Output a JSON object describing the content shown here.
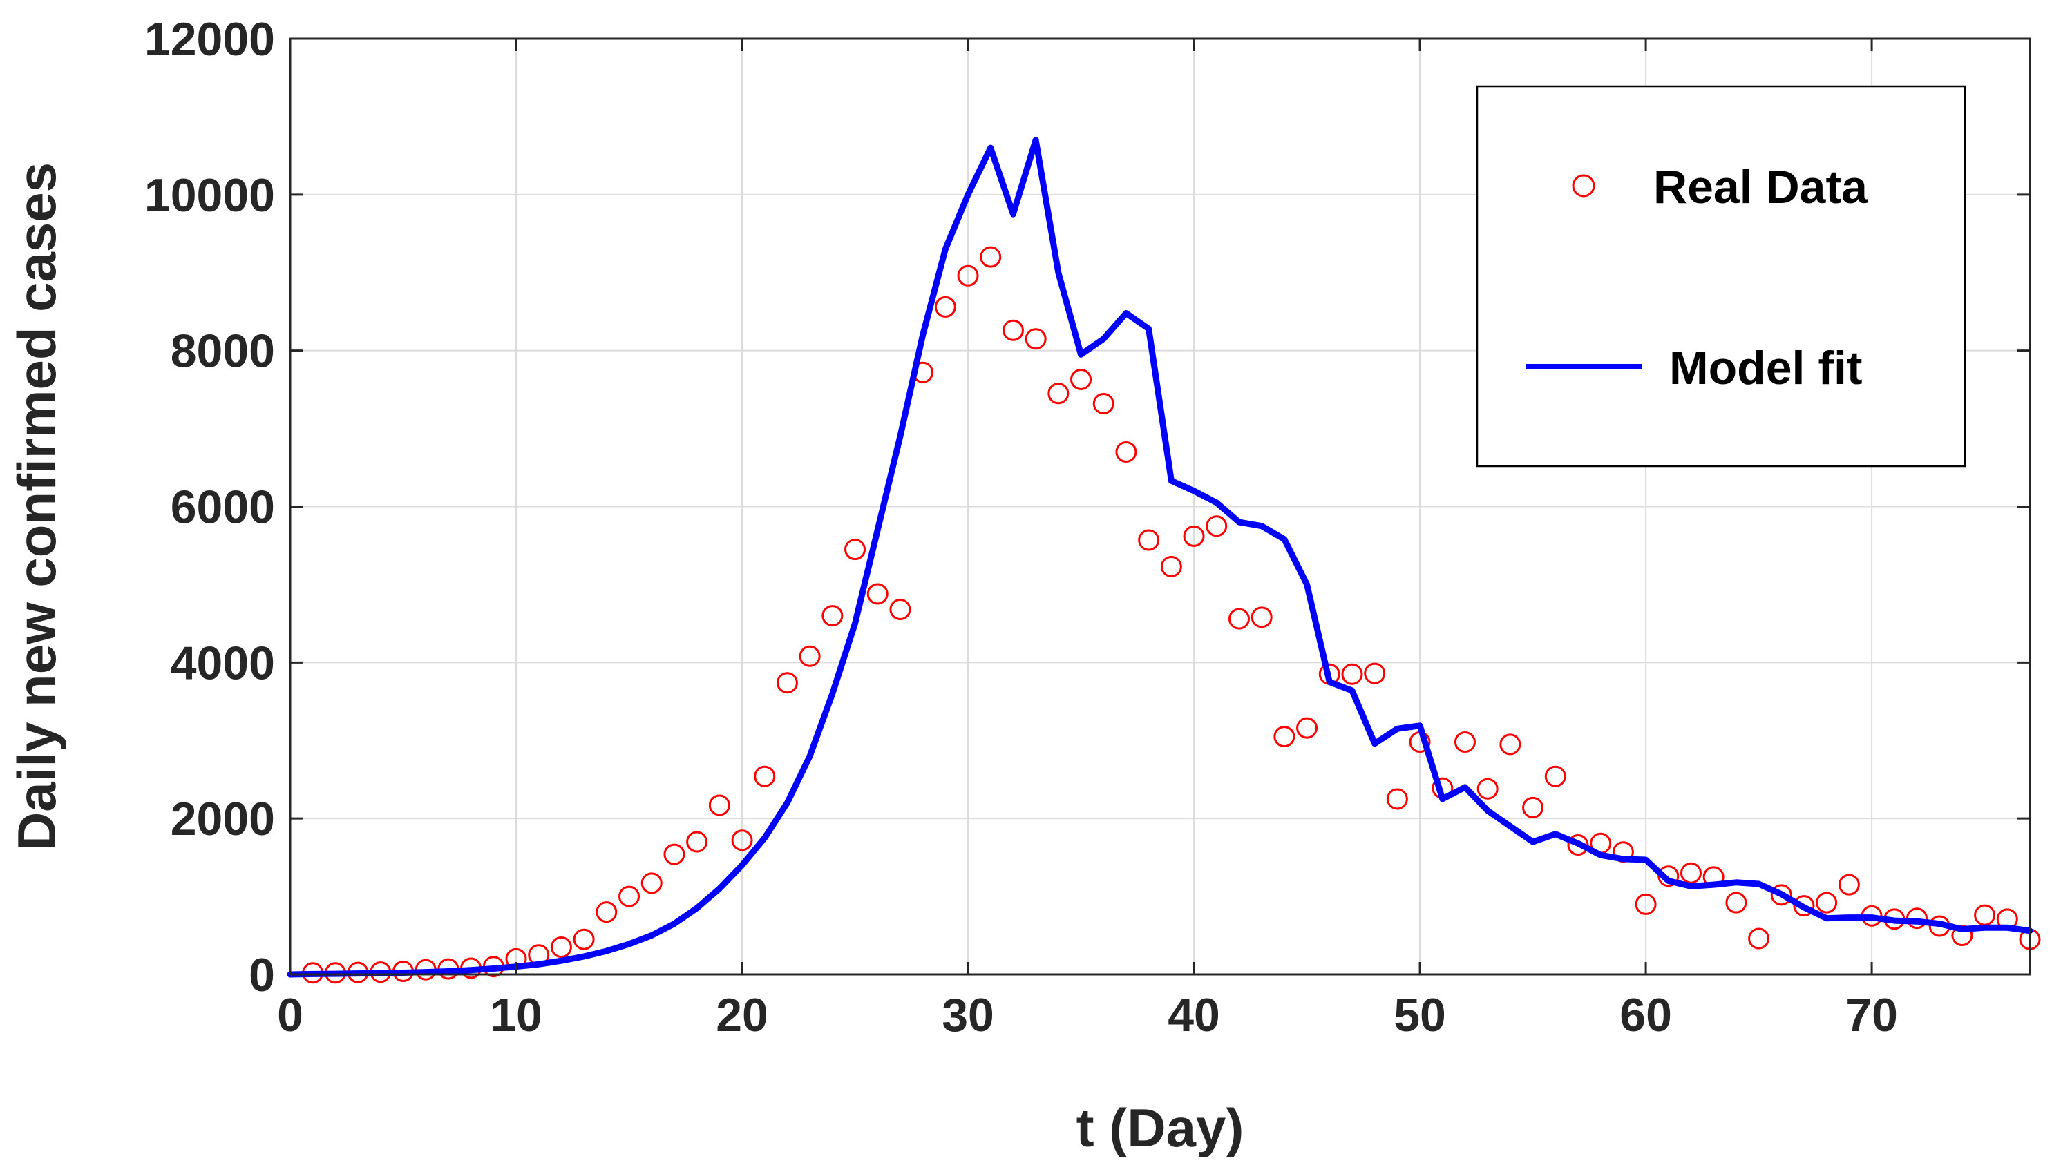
{
  "chart_data": {
    "type": "scatter+line",
    "title": "",
    "xlabel": "t (Day)",
    "ylabel": "Daily new confirmed cases",
    "xlim": [
      0,
      77
    ],
    "ylim": [
      0,
      12000
    ],
    "xticks": [
      0,
      10,
      20,
      30,
      40,
      50,
      60,
      70
    ],
    "yticks": [
      0,
      2000,
      4000,
      6000,
      8000,
      10000,
      12000
    ],
    "grid": true,
    "legend_position": "top-right",
    "colors": {
      "real": "#ff0000",
      "model": "#0000ff",
      "grid": "#dcdcdc",
      "axis": "#262626"
    },
    "series": [
      {
        "name": "Real Data",
        "kind": "scatter",
        "marker": "open-circle",
        "x": [
          1,
          2,
          3,
          4,
          5,
          6,
          7,
          8,
          9,
          10,
          11,
          12,
          13,
          14,
          15,
          16,
          17,
          18,
          19,
          20,
          21,
          22,
          23,
          24,
          25,
          26,
          27,
          28,
          29,
          30,
          31,
          32,
          33,
          34,
          35,
          36,
          37,
          38,
          39,
          40,
          41,
          42,
          43,
          44,
          45,
          46,
          47,
          48,
          49,
          50,
          51,
          52,
          53,
          54,
          55,
          56,
          57,
          58,
          59,
          60,
          61,
          62,
          63,
          64,
          65,
          66,
          67,
          68,
          69,
          70,
          71,
          72,
          73,
          74,
          75,
          76,
          77
        ],
        "y": [
          20,
          20,
          25,
          30,
          40,
          60,
          70,
          80,
          100,
          200,
          250,
          350,
          450,
          800,
          1000,
          1170,
          1540,
          1700,
          2170,
          1720,
          2540,
          3740,
          4080,
          4600,
          5450,
          4880,
          4680,
          7720,
          8560,
          8960,
          9200,
          8260,
          8150,
          7450,
          7630,
          7320,
          6700,
          5570,
          5230,
          5620,
          5750,
          4560,
          4580,
          3050,
          3160,
          3850,
          3850,
          3860,
          2250,
          2980,
          2390,
          2980,
          2380,
          2950,
          2140,
          2540,
          1660,
          1680,
          1570,
          900,
          1260,
          1300,
          1250,
          920,
          460,
          1020,
          880,
          920,
          1150,
          750,
          710,
          720,
          620,
          500,
          760,
          710,
          450
        ]
      },
      {
        "name": "Model fit",
        "kind": "line",
        "x": [
          0,
          1,
          2,
          3,
          4,
          5,
          6,
          7,
          8,
          9,
          10,
          11,
          12,
          13,
          14,
          15,
          16,
          17,
          18,
          19,
          20,
          21,
          22,
          23,
          24,
          25,
          26,
          27,
          28,
          29,
          30,
          31,
          32,
          33,
          34,
          35,
          36,
          37,
          38,
          39,
          40,
          41,
          42,
          43,
          44,
          45,
          46,
          47,
          48,
          49,
          50,
          51,
          52,
          53,
          54,
          55,
          56,
          57,
          58,
          59,
          60,
          61,
          62,
          63,
          64,
          65,
          66,
          67,
          68,
          69,
          70,
          71,
          72,
          73,
          74,
          75,
          76,
          77
        ],
        "y": [
          0,
          5,
          8,
          12,
          17,
          22,
          30,
          40,
          55,
          75,
          100,
          130,
          175,
          230,
          300,
          390,
          500,
          650,
          850,
          1100,
          1400,
          1750,
          2200,
          2800,
          3600,
          4500,
          5700,
          6900,
          8200,
          9300,
          10000,
          10600,
          9750,
          10700,
          9000,
          7950,
          8150,
          8480,
          8280,
          6330,
          6200,
          6050,
          5800,
          5750,
          5580,
          5000,
          3750,
          3640,
          2960,
          3150,
          3190,
          2250,
          2400,
          2100,
          1900,
          1700,
          1800,
          1680,
          1530,
          1480,
          1470,
          1200,
          1130,
          1150,
          1180,
          1160,
          1030,
          860,
          720,
          730,
          730,
          690,
          680,
          650,
          580,
          600,
          600,
          560
        ]
      }
    ]
  }
}
